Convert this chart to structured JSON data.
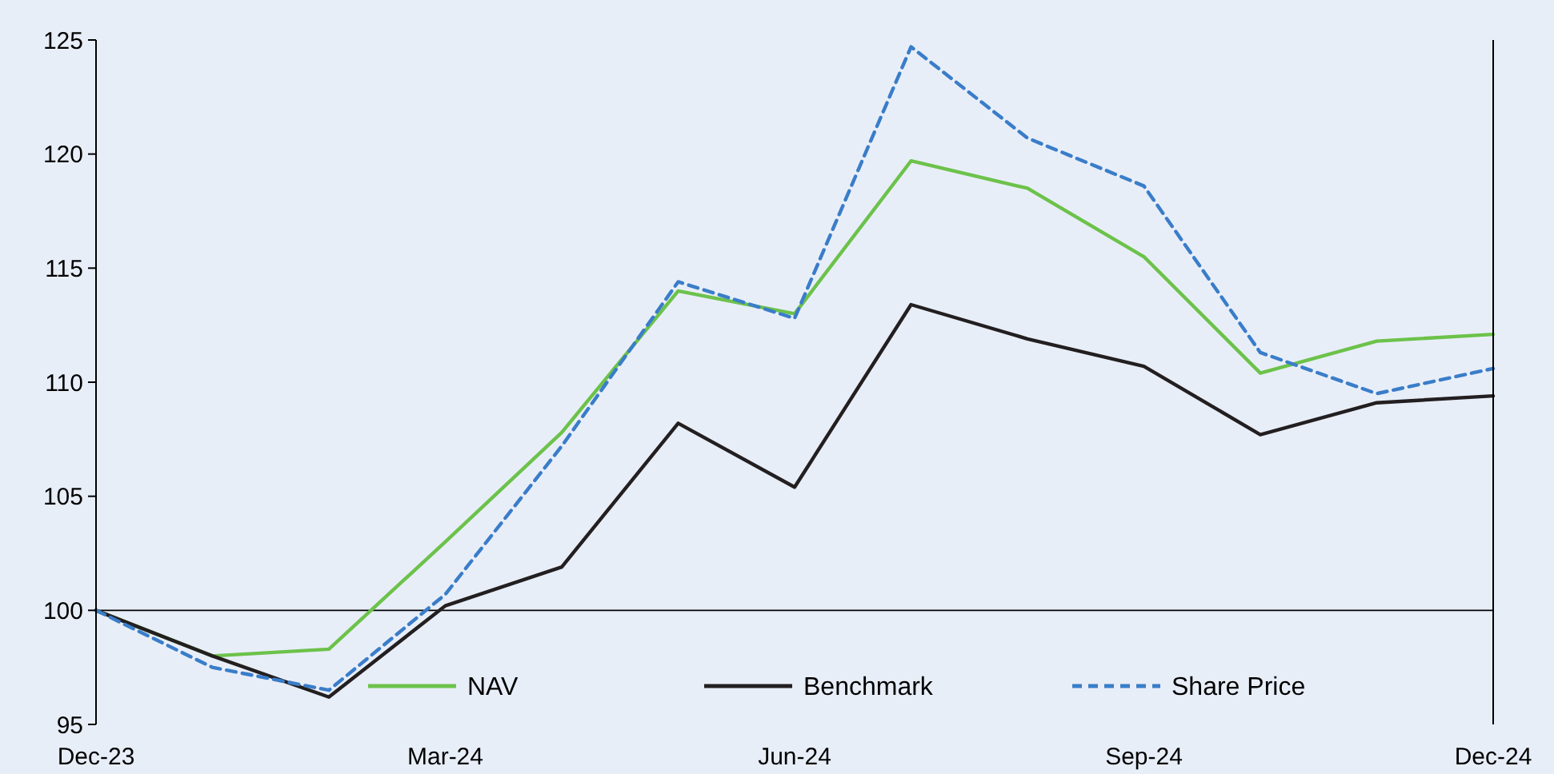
{
  "chart_data": {
    "type": "line",
    "categories": [
      "Dec-23",
      null,
      null,
      "Mar-24",
      null,
      null,
      "Jun-24",
      null,
      null,
      "Sep-24",
      null,
      null,
      "Dec-24"
    ],
    "series": [
      {
        "name": "NAV",
        "color": "#6cc24a",
        "line_style": "solid",
        "values": [
          100,
          98,
          98.3,
          103,
          107.8,
          114,
          113,
          119.7,
          118.5,
          115.5,
          110.4,
          111.8,
          112.1
        ]
      },
      {
        "name": "Benchmark",
        "color": "#231f20",
        "line_style": "solid",
        "values": [
          100,
          98,
          96.2,
          100.2,
          101.9,
          108.2,
          105.4,
          113.4,
          111.9,
          110.7,
          107.7,
          109.1,
          109.4
        ]
      },
      {
        "name": "Share Price",
        "color": "#3a7dc9",
        "line_style": "dashed",
        "values": [
          100,
          97.5,
          96.5,
          100.7,
          107.2,
          114.4,
          112.8,
          124.7,
          120.7,
          118.6,
          111.3,
          109.5,
          110.6
        ]
      }
    ],
    "ylim": [
      95,
      125
    ],
    "yticks": [
      95,
      100,
      105,
      110,
      115,
      120,
      125
    ],
    "ref_lines": [
      {
        "axis": "y",
        "value": 100,
        "color": "#000000"
      }
    ],
    "legend": "bottom",
    "grid": false,
    "marker": "none"
  }
}
